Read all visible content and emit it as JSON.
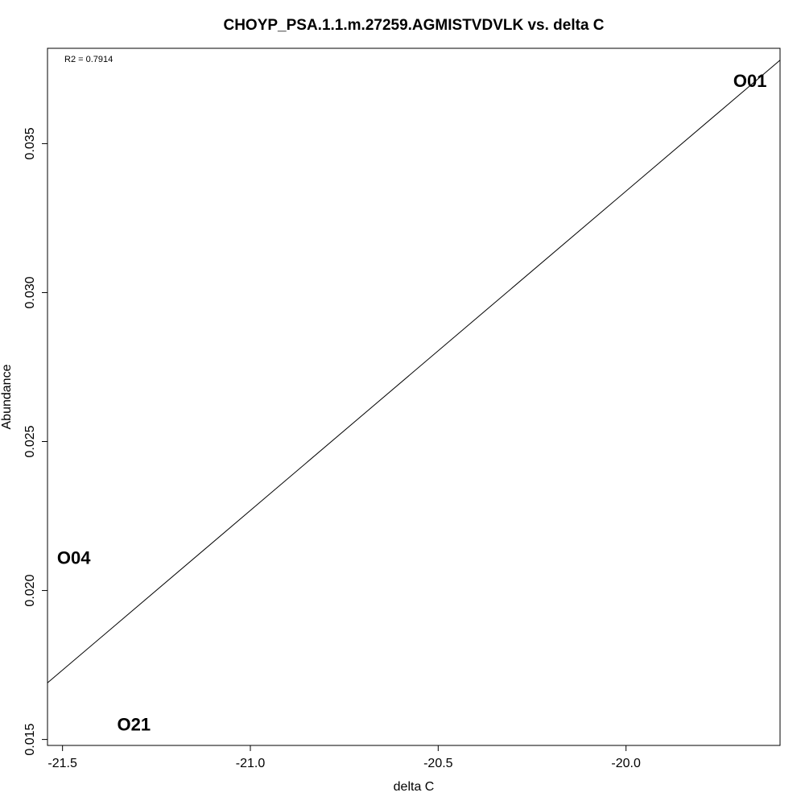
{
  "chart_data": {
    "type": "scatter",
    "title": "CHOYP_PSA.1.1.m.27259.AGMISTVDVLK vs. delta C",
    "xlabel": "delta C",
    "ylabel": "Abundance",
    "annotation": "R2 = 0.7914",
    "xlim": [
      -21.54,
      -19.59
    ],
    "ylim": [
      0.0148,
      0.0382
    ],
    "x_ticks": [
      -21.5,
      -21.0,
      -20.5,
      -20.0
    ],
    "x_tick_labels": [
      "-21.5",
      "-21.0",
      "-20.5",
      "-20.0"
    ],
    "y_ticks": [
      0.015,
      0.02,
      0.025,
      0.03,
      0.035
    ],
    "y_tick_labels": [
      "0.015",
      "0.020",
      "0.025",
      "0.030",
      "0.035"
    ],
    "points": [
      {
        "label": "O01",
        "x": -19.67,
        "y": 0.0371
      },
      {
        "label": "O04",
        "x": -21.47,
        "y": 0.0211
      },
      {
        "label": "O21",
        "x": -21.31,
        "y": 0.0155
      }
    ],
    "fit_line": {
      "x": [
        -21.54,
        -19.59
      ],
      "y": [
        0.0169,
        0.0378
      ]
    },
    "grid": false,
    "point_marker": "text-label"
  }
}
